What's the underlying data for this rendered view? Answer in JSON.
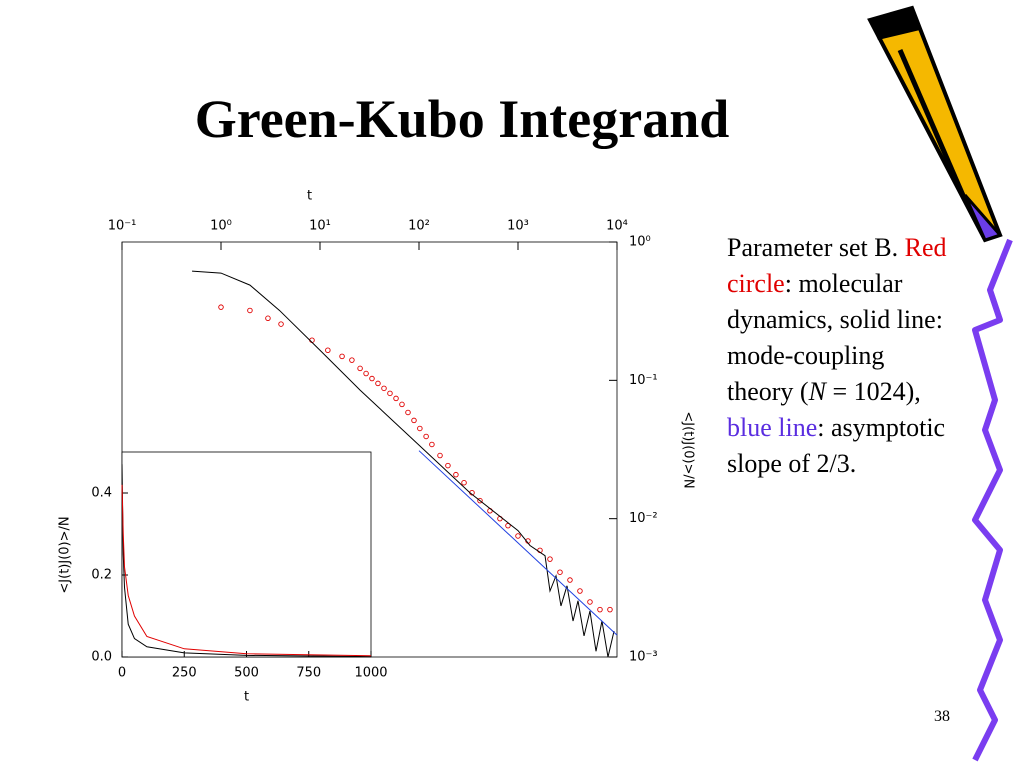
{
  "slide": {
    "title": "Green-Kubo Integrand",
    "page_number": "38",
    "text": [
      {
        "text": "Parameter set B. "
      },
      {
        "text": "Red circle",
        "color": "#e00000"
      },
      {
        "text": ": molecular dynamics, solid line: mode-coupling theory ("
      },
      {
        "text": "N",
        "italic": true
      },
      {
        "text": " = 1024), "
      },
      {
        "text": "blue line",
        "color": "#5a2de0"
      },
      {
        "text": ": asymptotic slope of 2/3."
      }
    ]
  },
  "chart_data": [
    {
      "type": "line",
      "xlabel": "t",
      "ylabel": "<J(t)J(0)>/N",
      "xscale": "log",
      "yscale": "log",
      "xaxis": "top",
      "yaxis": "right",
      "xlim": [
        0.1,
        10000
      ],
      "ylim": [
        0.001,
        1
      ],
      "xticks": [
        {
          "value": 0.1,
          "label": "10⁻¹"
        },
        {
          "value": 1,
          "label": "10⁰"
        },
        {
          "value": 10,
          "label": "10¹"
        },
        {
          "value": 100,
          "label": "10²"
        },
        {
          "value": 1000,
          "label": "10³"
        },
        {
          "value": 10000,
          "label": "10⁴"
        }
      ],
      "yticks": [
        {
          "value": 1,
          "label": "10⁰"
        },
        {
          "value": 0.1,
          "label": "10⁻¹"
        },
        {
          "value": 0.01,
          "label": "10⁻²"
        },
        {
          "value": 0.001,
          "label": "10⁻³"
        }
      ],
      "series": [
        {
          "color": "#e00000",
          "marker": "circle",
          "x": [
            1,
            1.96,
            2.98,
            4.04,
            8.3,
            12,
            16.7,
            21,
            25.4,
            29.2,
            33.5,
            38.5,
            44.3,
            50.9,
            58.6,
            67.3,
            77.4,
            89,
            102,
            118,
            135,
            163,
            196,
            236,
            285,
            343,
            413,
            521,
            657,
            792,
            1000,
            1262,
            1667,
            2104,
            2655,
            3350,
            4225,
            5333,
            6730,
            8490
          ],
          "values": [
            0.338,
            0.32,
            0.281,
            0.255,
            0.195,
            0.165,
            0.149,
            0.14,
            0.122,
            0.112,
            0.103,
            0.095,
            0.0875,
            0.0805,
            0.074,
            0.067,
            0.0586,
            0.0513,
            0.0449,
            0.0393,
            0.0344,
            0.0286,
            0.0242,
            0.0208,
            0.0182,
            0.0154,
            0.0135,
            0.0114,
            0.01,
            0.0089,
            0.0075,
            0.0069,
            0.0059,
            0.0051,
            0.0041,
            0.0036,
            0.003,
            0.0025,
            0.0022,
            0.0022
          ]
        },
        {
          "color": "#000000",
          "marker": "line",
          "x": [
            0.51,
            1,
            1.96,
            3.9,
            10,
            25.4,
            100,
            327,
            1000,
            1321,
            1875,
            2104,
            2421,
            2716,
            3126,
            3597,
            4036,
            4645,
            5333,
            6138,
            7047,
            8110,
            9333
          ],
          "values": [
            0.616,
            0.596,
            0.488,
            0.32,
            0.165,
            0.085,
            0.034,
            0.0154,
            0.0082,
            0.0064,
            0.0054,
            0.003,
            0.00386,
            0.00234,
            0.00327,
            0.00182,
            0.00255,
            0.00142,
            0.00215,
            0.0011,
            0.00182,
            0.001,
            0.00154
          ]
        },
        {
          "color": "#2040e0",
          "marker": "line",
          "x": [
            100,
            10000
          ],
          "values": [
            0.031,
            0.00144
          ]
        }
      ]
    },
    {
      "type": "line",
      "xlabel": "t",
      "ylabel": "<J(t)J(0)>/N",
      "xlim": [
        0,
        1000
      ],
      "ylim": [
        0,
        0.5
      ],
      "xticks": [
        0,
        250,
        500,
        750,
        1000
      ],
      "yticks": [
        {
          "value": 0,
          "label": "0.0"
        },
        0.2,
        0.4
      ],
      "series": [
        {
          "color": "#000000",
          "x": [
            0,
            5,
            10,
            25,
            50,
            100,
            250,
            500,
            1000
          ],
          "values": [
            0.47,
            0.25,
            0.17,
            0.08,
            0.045,
            0.025,
            0.01,
            0.004,
            0.001
          ]
        },
        {
          "color": "#e00000",
          "x": [
            0,
            5,
            10,
            25,
            50,
            100,
            250,
            500,
            1000
          ],
          "values": [
            0.42,
            0.3,
            0.22,
            0.15,
            0.1,
            0.05,
            0.02,
            0.008,
            0.003
          ]
        }
      ]
    }
  ]
}
